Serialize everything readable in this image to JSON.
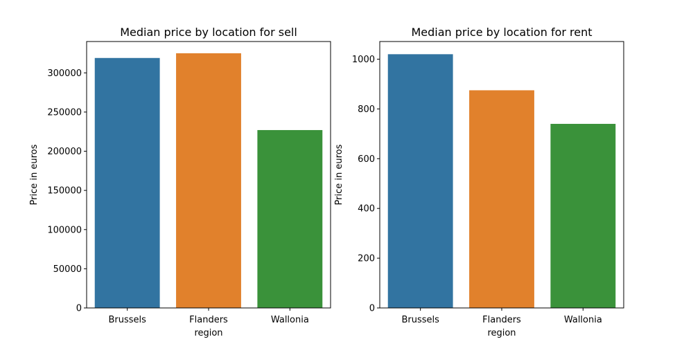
{
  "chart_data": [
    {
      "type": "bar",
      "title": "Median price by location for sell",
      "xlabel": "region",
      "ylabel": "Price in euros",
      "categories": [
        "Brussels",
        "Flanders",
        "Wallonia"
      ],
      "values": [
        319000,
        325000,
        227000
      ],
      "colors": [
        "#3274a1",
        "#e1812c",
        "#3a923a"
      ],
      "ylim": [
        0,
        340000
      ],
      "yticks": [
        0,
        50000,
        100000,
        150000,
        200000,
        250000,
        300000
      ],
      "grid": false
    },
    {
      "type": "bar",
      "title": "Median price by location for rent",
      "xlabel": "region",
      "ylabel": "Price in euros",
      "categories": [
        "Brussels",
        "Flanders",
        "Wallonia"
      ],
      "values": [
        1020,
        875,
        740
      ],
      "colors": [
        "#3274a1",
        "#e1812c",
        "#3a923a"
      ],
      "ylim": [
        0,
        1071
      ],
      "yticks": [
        0,
        200,
        400,
        600,
        800,
        1000
      ],
      "grid": false
    }
  ]
}
